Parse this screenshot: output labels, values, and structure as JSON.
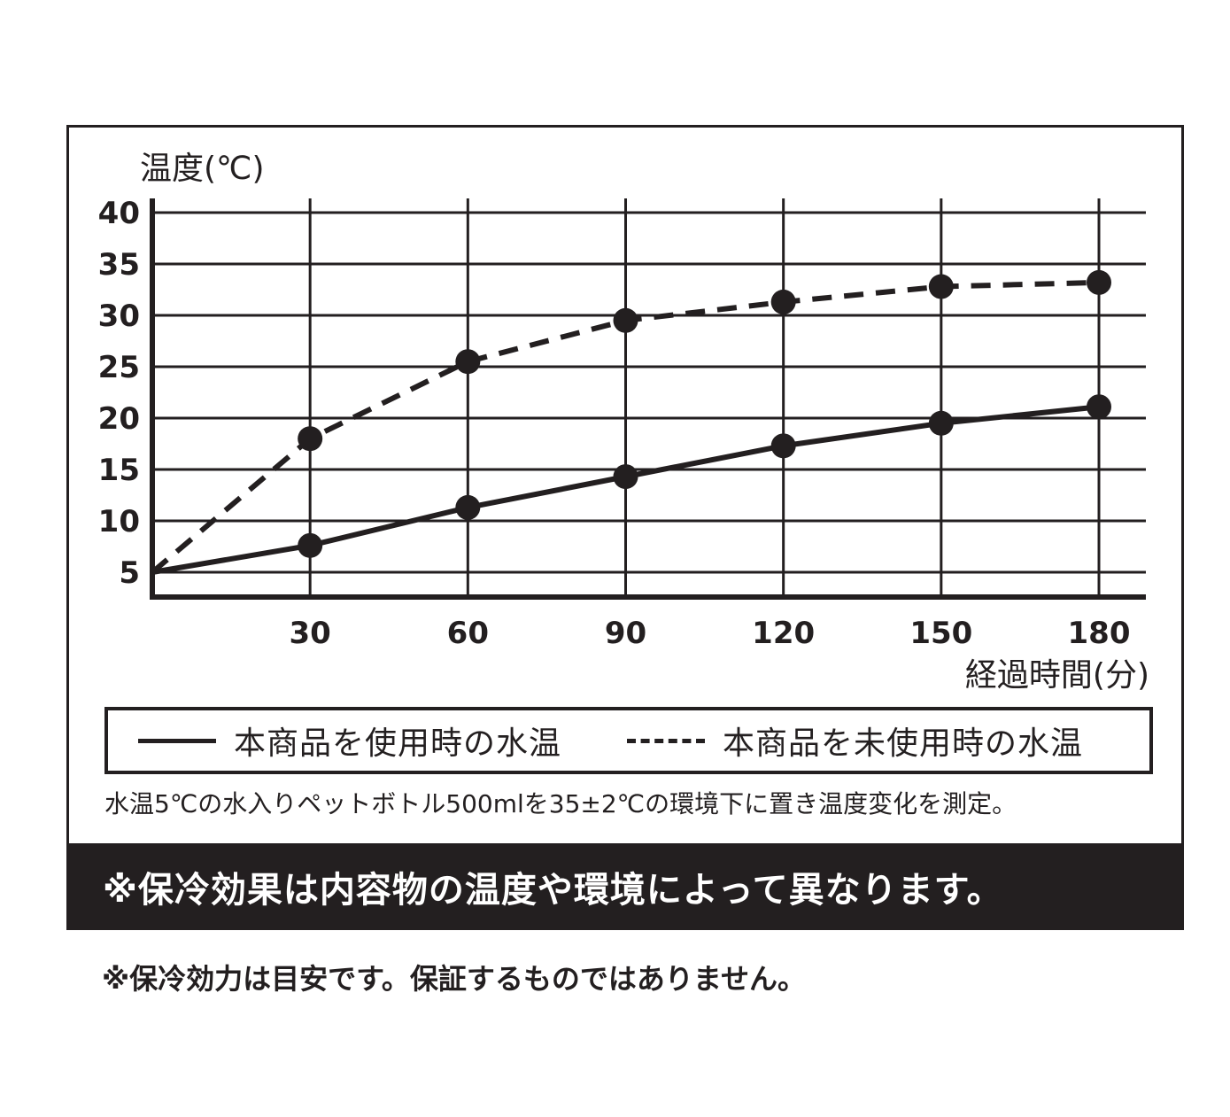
{
  "chart_data": {
    "type": "line",
    "ylabel": "温度(℃)",
    "xlabel": "経過時間(分)",
    "x": [
      0,
      30,
      60,
      90,
      120,
      150,
      180
    ],
    "x_tick_labels": [
      "30",
      "60",
      "90",
      "120",
      "150",
      "180"
    ],
    "y_tick_labels": [
      "40",
      "35",
      "30",
      "25",
      "20",
      "15",
      "10",
      "5"
    ],
    "xlim": [
      0,
      180
    ],
    "ylim": [
      5,
      40
    ],
    "grid": true,
    "series": [
      {
        "name": "本商品を使用時の水温",
        "style": "solid",
        "values": [
          5,
          7.6,
          11.3,
          14.3,
          17.3,
          19.5,
          21.1
        ]
      },
      {
        "name": "本商品を未使用時の水温",
        "style": "dashed",
        "values": [
          5,
          18,
          25.5,
          29.5,
          31.3,
          32.8,
          33.2
        ]
      }
    ],
    "legend_position": "bottom",
    "colors": {
      "line": "#231f20"
    }
  },
  "note": "水温5℃の水入りペットボトル500mlを35±2℃の環境下に置き温度変化を測定。",
  "banner": "※保冷効果は内容物の温度や環境によって異なります。",
  "footnote": "※保冷効力は目安です。保証するものではありません。"
}
